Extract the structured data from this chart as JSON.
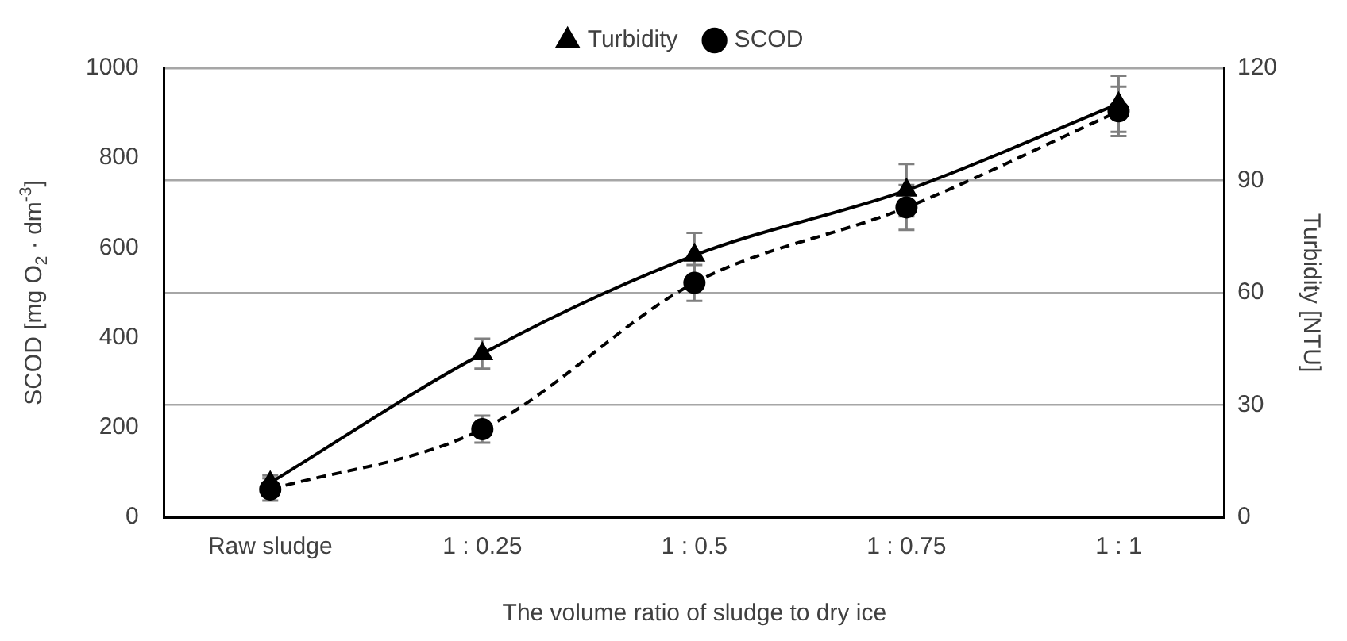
{
  "chart_data": {
    "type": "line",
    "xlabel": "The volume ratio of sludge to dry ice",
    "ylabel": "SCOD [mg O$_{2}$ · dm$^{-3}$]",
    "y2label": "Turbidity [NTU]",
    "categories": [
      "Raw sludge",
      "1 : 0.25",
      "1 : 0.5",
      "1 : 0.75",
      "1 : 1"
    ],
    "series": [
      {
        "name": "SCOD",
        "color": "#000000",
        "values": [
          62,
          196,
          522,
          690,
          904
        ],
        "errors": [
          25,
          30,
          40,
          50,
          55
        ],
        "marker": "circle",
        "line_style": "dashed"
      },
      {
        "name": "Turbidity",
        "color": "#000000",
        "axis": "y2",
        "values": [
          9.2,
          43.7,
          70,
          87.4,
          110.5
        ],
        "errors": [
          2,
          4,
          6,
          7,
          7.5
        ],
        "marker": "triangle",
        "line_style": "solid"
      }
    ],
    "ylim": [
      0,
      1000
    ],
    "yticks": [
      0,
      200,
      400,
      600,
      800,
      1000
    ],
    "y2lim": [
      0,
      120
    ],
    "y2ticks": [
      0,
      30,
      60,
      90,
      120
    ],
    "grid": "y",
    "legend": "top"
  }
}
